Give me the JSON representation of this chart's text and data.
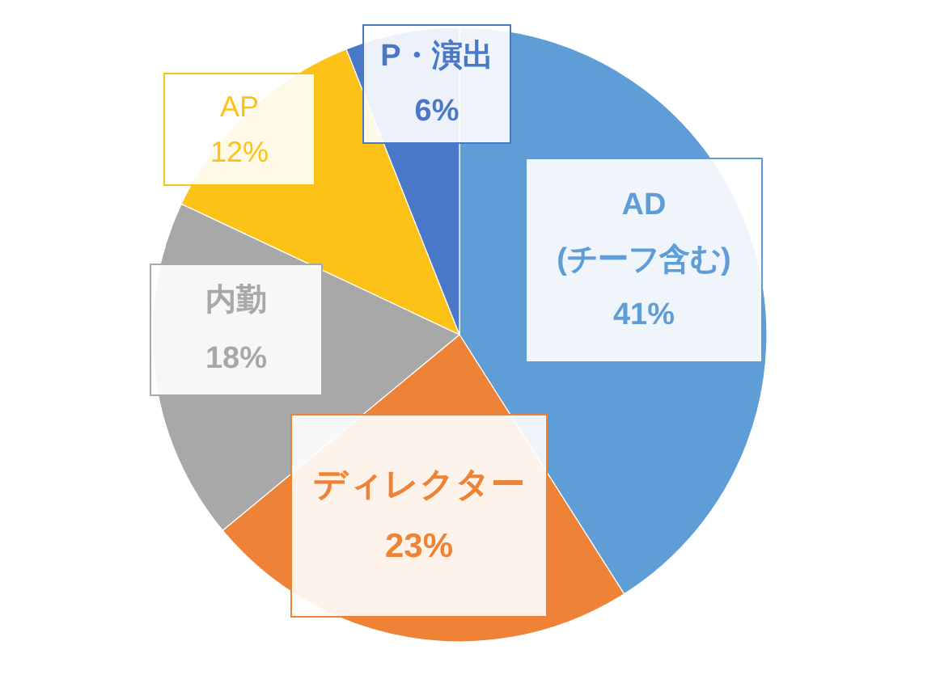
{
  "chart_data": {
    "type": "pie",
    "categories": [
      "AD (チーフ含む)",
      "ディレクター",
      "内勤",
      "AP",
      "P・演出"
    ],
    "values": [
      41,
      23,
      18,
      12,
      6
    ],
    "value_labels": [
      "41%",
      "23%",
      "18%",
      "12%",
      "6%"
    ],
    "colors": [
      "#5f9dd6",
      "#ee8236",
      "#a8a8a8",
      "#fdc218",
      "#4a78c8"
    ]
  }
}
